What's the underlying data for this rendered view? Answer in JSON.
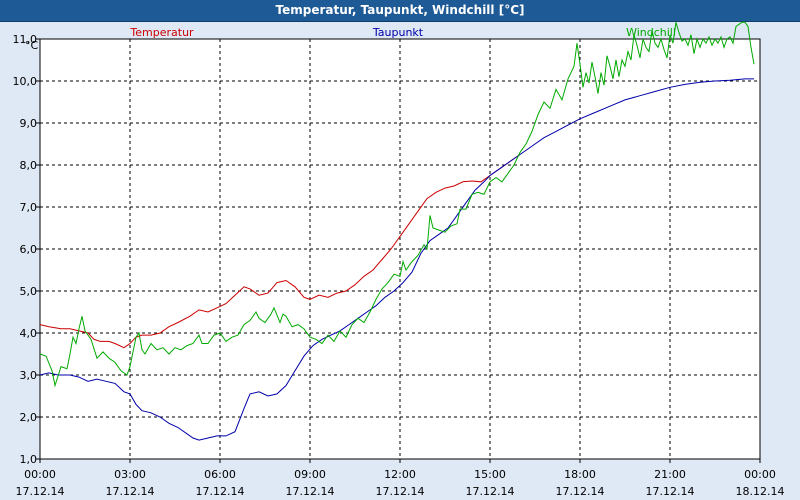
{
  "title": "Temperatur, Taupunkt, Windchill [°C]",
  "chart_data": {
    "type": "line",
    "unit": "°C",
    "ylim": [
      1.0,
      11.0
    ],
    "y_ticks": [
      "1,0",
      "2,0",
      "3,0",
      "4,0",
      "5,0",
      "6,0",
      "7,0",
      "8,0",
      "9,0",
      "10,0",
      "11,0"
    ],
    "x_ticks": [
      {
        "time": "00:00",
        "date": "17.12.14"
      },
      {
        "time": "03:00",
        "date": "17.12.14"
      },
      {
        "time": "06:00",
        "date": "17.12.14"
      },
      {
        "time": "09:00",
        "date": "17.12.14"
      },
      {
        "time": "12:00",
        "date": "17.12.14"
      },
      {
        "time": "15:00",
        "date": "17.12.14"
      },
      {
        "time": "18:00",
        "date": "17.12.14"
      },
      {
        "time": "21:00",
        "date": "17.12.14"
      },
      {
        "time": "00:00",
        "date": "18.12.14"
      }
    ],
    "grid": true,
    "series": [
      {
        "name": "Temperatur",
        "color": "#cc0000",
        "points": [
          [
            0.0,
            4.2
          ],
          [
            0.3,
            4.15
          ],
          [
            0.7,
            4.1
          ],
          [
            1.0,
            4.1
          ],
          [
            1.3,
            4.05
          ],
          [
            1.6,
            4.0
          ],
          [
            1.8,
            3.85
          ],
          [
            2.0,
            3.8
          ],
          [
            2.3,
            3.8
          ],
          [
            2.5,
            3.75
          ],
          [
            2.8,
            3.65
          ],
          [
            3.0,
            3.75
          ],
          [
            3.2,
            3.9
          ],
          [
            3.4,
            3.95
          ],
          [
            3.7,
            3.95
          ],
          [
            4.0,
            4.0
          ],
          [
            4.3,
            4.15
          ],
          [
            4.6,
            4.25
          ],
          [
            5.0,
            4.4
          ],
          [
            5.3,
            4.55
          ],
          [
            5.6,
            4.5
          ],
          [
            5.9,
            4.6
          ],
          [
            6.2,
            4.7
          ],
          [
            6.5,
            4.9
          ],
          [
            6.8,
            5.1
          ],
          [
            7.0,
            5.05
          ],
          [
            7.3,
            4.9
          ],
          [
            7.6,
            4.95
          ],
          [
            7.9,
            5.2
          ],
          [
            8.2,
            5.25
          ],
          [
            8.5,
            5.1
          ],
          [
            8.8,
            4.85
          ],
          [
            9.0,
            4.8
          ],
          [
            9.3,
            4.9
          ],
          [
            9.6,
            4.85
          ],
          [
            9.9,
            4.95
          ],
          [
            10.2,
            5.0
          ],
          [
            10.5,
            5.15
          ],
          [
            10.8,
            5.35
          ],
          [
            11.1,
            5.5
          ],
          [
            11.4,
            5.75
          ],
          [
            11.7,
            6.0
          ],
          [
            12.0,
            6.3
          ],
          [
            12.3,
            6.6
          ],
          [
            12.6,
            6.9
          ],
          [
            12.9,
            7.2
          ],
          [
            13.2,
            7.35
          ],
          [
            13.5,
            7.45
          ],
          [
            13.8,
            7.5
          ],
          [
            14.1,
            7.6
          ],
          [
            14.4,
            7.62
          ],
          [
            14.7,
            7.6
          ],
          [
            15.0,
            7.75
          ],
          [
            15.3,
            7.9
          ],
          [
            15.6,
            8.05
          ],
          [
            16.0,
            8.25
          ]
        ]
      },
      {
        "name": "Taupunkt",
        "color": "#0000aa",
        "points": [
          [
            0.0,
            3.0
          ],
          [
            0.3,
            3.05
          ],
          [
            0.6,
            3.0
          ],
          [
            1.0,
            3.0
          ],
          [
            1.3,
            2.95
          ],
          [
            1.6,
            2.85
          ],
          [
            1.9,
            2.9
          ],
          [
            2.2,
            2.85
          ],
          [
            2.5,
            2.8
          ],
          [
            2.8,
            2.6
          ],
          [
            3.0,
            2.55
          ],
          [
            3.2,
            2.3
          ],
          [
            3.4,
            2.15
          ],
          [
            3.7,
            2.1
          ],
          [
            4.0,
            2.0
          ],
          [
            4.3,
            1.85
          ],
          [
            4.6,
            1.75
          ],
          [
            4.9,
            1.6
          ],
          [
            5.1,
            1.5
          ],
          [
            5.3,
            1.45
          ],
          [
            5.6,
            1.5
          ],
          [
            5.9,
            1.55
          ],
          [
            6.2,
            1.55
          ],
          [
            6.5,
            1.65
          ],
          [
            6.8,
            2.2
          ],
          [
            7.0,
            2.55
          ],
          [
            7.3,
            2.6
          ],
          [
            7.6,
            2.5
          ],
          [
            7.9,
            2.55
          ],
          [
            8.2,
            2.75
          ],
          [
            8.5,
            3.1
          ],
          [
            8.8,
            3.45
          ],
          [
            9.1,
            3.7
          ],
          [
            9.4,
            3.85
          ],
          [
            9.7,
            3.95
          ],
          [
            10.0,
            4.05
          ],
          [
            10.3,
            4.2
          ],
          [
            10.6,
            4.35
          ],
          [
            10.9,
            4.5
          ],
          [
            11.2,
            4.65
          ],
          [
            11.5,
            4.85
          ],
          [
            11.8,
            5.0
          ],
          [
            12.1,
            5.2
          ],
          [
            12.4,
            5.45
          ],
          [
            12.7,
            5.9
          ],
          [
            13.0,
            6.2
          ],
          [
            13.3,
            6.35
          ],
          [
            13.6,
            6.5
          ],
          [
            13.9,
            6.8
          ],
          [
            14.2,
            7.1
          ],
          [
            14.5,
            7.4
          ],
          [
            14.8,
            7.6
          ],
          [
            15.0,
            7.75
          ],
          [
            15.3,
            7.9
          ],
          [
            15.6,
            8.05
          ],
          [
            16.0,
            8.25
          ],
          [
            16.4,
            8.45
          ],
          [
            16.8,
            8.65
          ],
          [
            17.2,
            8.8
          ],
          [
            17.6,
            8.95
          ],
          [
            18.0,
            9.1
          ],
          [
            18.5,
            9.25
          ],
          [
            19.0,
            9.4
          ],
          [
            19.5,
            9.55
          ],
          [
            20.0,
            9.65
          ],
          [
            20.5,
            9.75
          ],
          [
            21.0,
            9.85
          ],
          [
            21.5,
            9.92
          ],
          [
            22.0,
            9.97
          ],
          [
            22.5,
            10.0
          ],
          [
            23.0,
            10.02
          ],
          [
            23.5,
            10.05
          ],
          [
            23.8,
            10.05
          ]
        ]
      },
      {
        "name": "Windchill",
        "color": "#00aa00",
        "points": [
          [
            0.0,
            3.5
          ],
          [
            0.2,
            3.45
          ],
          [
            0.4,
            3.1
          ],
          [
            0.5,
            2.75
          ],
          [
            0.7,
            3.2
          ],
          [
            0.9,
            3.15
          ],
          [
            1.0,
            3.5
          ],
          [
            1.1,
            3.9
          ],
          [
            1.2,
            3.75
          ],
          [
            1.3,
            4.1
          ],
          [
            1.4,
            4.4
          ],
          [
            1.5,
            4.05
          ],
          [
            1.7,
            3.85
          ],
          [
            1.9,
            3.4
          ],
          [
            2.1,
            3.55
          ],
          [
            2.3,
            3.4
          ],
          [
            2.5,
            3.3
          ],
          [
            2.7,
            3.1
          ],
          [
            2.9,
            3.0
          ],
          [
            3.0,
            3.2
          ],
          [
            3.2,
            3.9
          ],
          [
            3.3,
            4.0
          ],
          [
            3.4,
            3.6
          ],
          [
            3.5,
            3.5
          ],
          [
            3.7,
            3.75
          ],
          [
            3.9,
            3.6
          ],
          [
            4.1,
            3.65
          ],
          [
            4.3,
            3.5
          ],
          [
            4.5,
            3.65
          ],
          [
            4.7,
            3.6
          ],
          [
            4.9,
            3.7
          ],
          [
            5.1,
            3.75
          ],
          [
            5.3,
            3.95
          ],
          [
            5.4,
            3.75
          ],
          [
            5.6,
            3.75
          ],
          [
            5.8,
            3.95
          ],
          [
            6.0,
            4.0
          ],
          [
            6.2,
            3.8
          ],
          [
            6.4,
            3.9
          ],
          [
            6.6,
            3.95
          ],
          [
            6.8,
            4.2
          ],
          [
            7.0,
            4.3
          ],
          [
            7.2,
            4.5
          ],
          [
            7.3,
            4.35
          ],
          [
            7.5,
            4.25
          ],
          [
            7.7,
            4.45
          ],
          [
            7.8,
            4.6
          ],
          [
            8.0,
            4.25
          ],
          [
            8.1,
            4.45
          ],
          [
            8.2,
            4.4
          ],
          [
            8.4,
            4.15
          ],
          [
            8.6,
            4.2
          ],
          [
            8.8,
            4.1
          ],
          [
            9.0,
            3.9
          ],
          [
            9.2,
            3.85
          ],
          [
            9.4,
            3.75
          ],
          [
            9.6,
            3.95
          ],
          [
            9.8,
            3.8
          ],
          [
            10.0,
            4.05
          ],
          [
            10.2,
            3.9
          ],
          [
            10.4,
            4.2
          ],
          [
            10.6,
            4.35
          ],
          [
            10.8,
            4.25
          ],
          [
            11.0,
            4.5
          ],
          [
            11.2,
            4.8
          ],
          [
            11.4,
            5.05
          ],
          [
            11.6,
            5.2
          ],
          [
            11.8,
            5.4
          ],
          [
            12.0,
            5.35
          ],
          [
            12.1,
            5.7
          ],
          [
            12.2,
            5.5
          ],
          [
            12.4,
            5.7
          ],
          [
            12.6,
            5.85
          ],
          [
            12.8,
            6.1
          ],
          [
            12.9,
            6.0
          ],
          [
            13.0,
            6.8
          ],
          [
            13.1,
            6.5
          ],
          [
            13.3,
            6.45
          ],
          [
            13.5,
            6.4
          ],
          [
            13.7,
            6.55
          ],
          [
            13.9,
            6.6
          ],
          [
            14.0,
            6.95
          ],
          [
            14.2,
            6.95
          ],
          [
            14.4,
            7.3
          ],
          [
            14.6,
            7.35
          ],
          [
            14.8,
            7.3
          ],
          [
            15.0,
            7.6
          ],
          [
            15.2,
            7.7
          ],
          [
            15.4,
            7.6
          ],
          [
            15.6,
            7.8
          ],
          [
            15.8,
            8.0
          ],
          [
            16.0,
            8.3
          ],
          [
            16.2,
            8.5
          ],
          [
            16.4,
            8.8
          ],
          [
            16.6,
            9.2
          ],
          [
            16.8,
            9.5
          ],
          [
            17.0,
            9.35
          ],
          [
            17.2,
            9.8
          ],
          [
            17.4,
            9.55
          ],
          [
            17.6,
            10.05
          ],
          [
            17.8,
            10.35
          ],
          [
            17.9,
            10.9
          ],
          [
            18.0,
            10.4
          ],
          [
            18.1,
            9.85
          ],
          [
            18.2,
            10.2
          ],
          [
            18.3,
            9.95
          ],
          [
            18.4,
            10.45
          ],
          [
            18.5,
            10.1
          ],
          [
            18.6,
            9.7
          ],
          [
            18.7,
            10.2
          ],
          [
            18.8,
            9.9
          ],
          [
            18.9,
            10.6
          ],
          [
            19.0,
            10.35
          ],
          [
            19.1,
            10.05
          ],
          [
            19.2,
            10.5
          ],
          [
            19.3,
            10.1
          ],
          [
            19.4,
            10.5
          ],
          [
            19.5,
            10.35
          ],
          [
            19.6,
            10.7
          ],
          [
            19.7,
            10.5
          ],
          [
            19.8,
            11.1
          ],
          [
            19.9,
            10.85
          ],
          [
            20.0,
            10.55
          ],
          [
            20.1,
            11.0
          ],
          [
            20.2,
            10.8
          ],
          [
            20.3,
            10.7
          ],
          [
            20.4,
            11.2
          ],
          [
            20.5,
            10.9
          ],
          [
            20.6,
            10.8
          ],
          [
            20.7,
            11.0
          ],
          [
            20.8,
            10.75
          ],
          [
            20.9,
            10.55
          ],
          [
            21.0,
            11.1
          ],
          [
            21.1,
            10.9
          ],
          [
            21.2,
            11.4
          ],
          [
            21.3,
            11.15
          ],
          [
            21.4,
            10.95
          ],
          [
            21.5,
            11.0
          ],
          [
            21.6,
            10.85
          ],
          [
            21.7,
            11.1
          ],
          [
            21.8,
            10.65
          ],
          [
            21.9,
            11.0
          ],
          [
            22.0,
            10.8
          ],
          [
            22.1,
            11.0
          ],
          [
            22.2,
            10.9
          ],
          [
            22.3,
            11.05
          ],
          [
            22.4,
            10.85
          ],
          [
            22.5,
            11.0
          ],
          [
            22.6,
            10.9
          ],
          [
            22.7,
            11.05
          ],
          [
            22.8,
            10.8
          ],
          [
            22.9,
            11.0
          ],
          [
            23.0,
            11.05
          ],
          [
            23.1,
            10.9
          ],
          [
            23.2,
            11.3
          ],
          [
            23.3,
            11.35
          ],
          [
            23.4,
            11.4
          ],
          [
            23.5,
            11.4
          ],
          [
            23.6,
            11.3
          ],
          [
            23.7,
            10.8
          ],
          [
            23.8,
            10.4
          ]
        ]
      }
    ]
  }
}
